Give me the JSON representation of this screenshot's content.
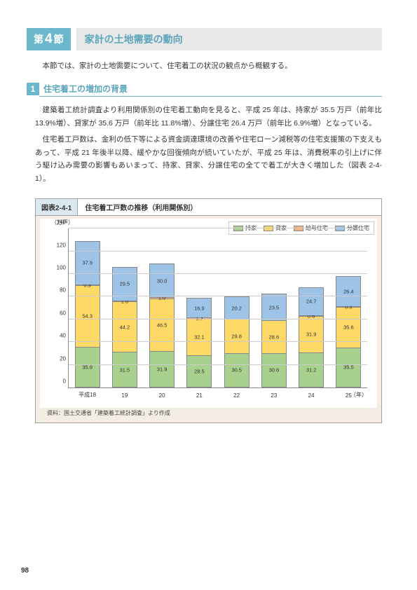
{
  "section": {
    "badge_pre": "第",
    "badge_num": "4",
    "badge_post": "節",
    "title": "家計の土地需要の動向"
  },
  "intro": "本節では、家計の土地需要について、住宅着工の状況の観点から概観する。",
  "subsection": {
    "num": "1",
    "title": "住宅着工の増加の背景"
  },
  "para1": "建築着工統計調査より利用関係別の住宅着工動向を見ると、平成 25 年は、持家が 35.5 万戸（前年比 13.9%増）、貸家が 35.6 万戸（前年比 11.8%増）、分譲住宅 26.4 万戸（前年比 6.9%増）となっている。",
  "para2": "住宅着工戸数は、金利の低下等による資金調達環境の改善や住宅ローン減税等の住宅支援策の下支えもあって、平成 21 年後半以降、緩やかな回復傾向が続いていたが、平成 25 年は、消費税率の引上げに伴う駆け込み需要の影響もあいまって、持家、貸家、分譲住宅の全てで着工が大きく増加した（図表 2-4-1）。",
  "figure": {
    "id": "図表2-4-1",
    "title": "住宅着工戸数の推移（利用関係別）",
    "y_unit": "（万戸）",
    "ymax": 140,
    "yticks": [
      0,
      20,
      40,
      60,
      80,
      100,
      120,
      140
    ],
    "categories": [
      "平成18",
      "19",
      "20",
      "21",
      "22",
      "23",
      "24",
      "25"
    ],
    "x_unit": "（年）",
    "series": [
      {
        "name": "持家",
        "color": "#a9d18e"
      },
      {
        "name": "貸家",
        "color": "#ffd966"
      },
      {
        "name": "給与住宅",
        "color": "#f4b183"
      },
      {
        "name": "分譲住宅",
        "color": "#9dc3e6"
      }
    ],
    "data": {
      "mochi": [
        35.9,
        31.5,
        31.9,
        28.5,
        30.5,
        30.6,
        31.2,
        35.5
      ],
      "kashi": [
        54.3,
        44.2,
        46.5,
        32.1,
        29.8,
        28.6,
        31.9,
        35.6
      ],
      "kyuyo": [
        0.9,
        1.0,
        1.0,
        1.3,
        0.0,
        0.0,
        0.6,
        0.5
      ],
      "bunjo": [
        37.9,
        29.5,
        30.0,
        16.9,
        20.2,
        23.5,
        24.7,
        26.4
      ]
    },
    "labels_override": {
      "5": {
        "kyuyo": ""
      },
      "4": {
        "kyuyo": ""
      }
    },
    "source": "資料：国土交通省「建築着工統計調査」より作成"
  },
  "page_number": "98"
}
